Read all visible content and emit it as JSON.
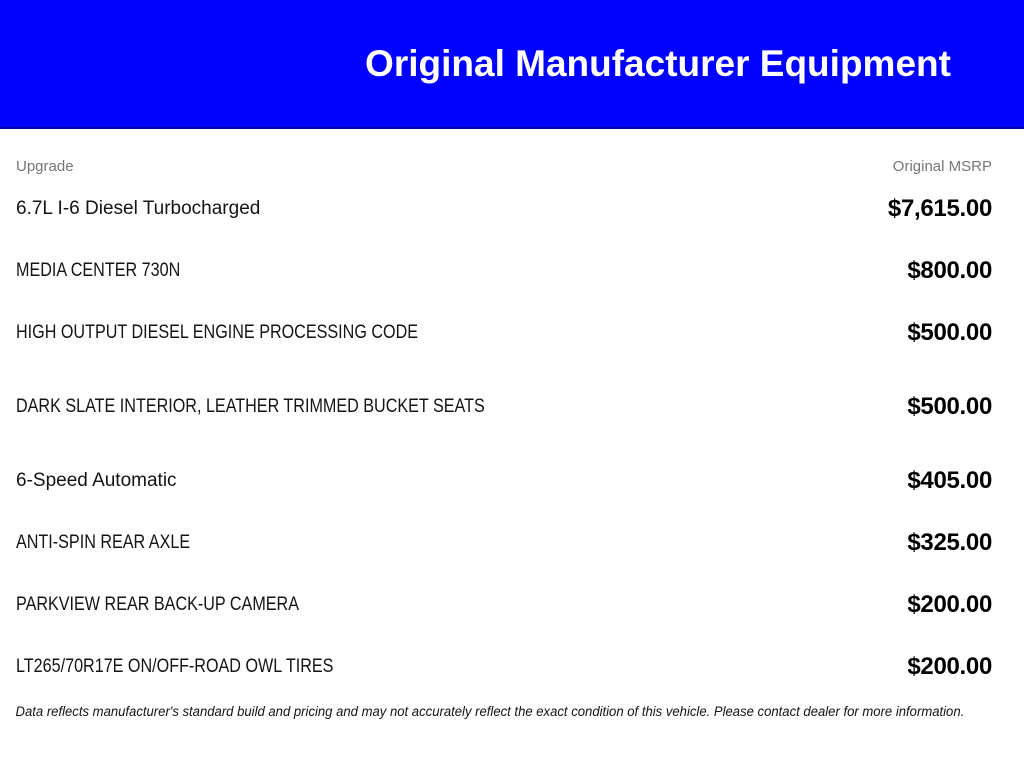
{
  "banner": {
    "title": "Original Manufacturer Equipment"
  },
  "table": {
    "columns": {
      "upgrade": "Upgrade",
      "msrp": "Original MSRP"
    },
    "rows": [
      {
        "label": "6.7L I-6 Diesel Turbocharged",
        "price": "$7,615.00"
      },
      {
        "label": "MEDIA CENTER 730N",
        "price": "$800.00"
      },
      {
        "label": "HIGH OUTPUT DIESEL ENGINE PROCESSING CODE",
        "price": "$500.00"
      },
      {
        "label": "DARK SLATE INTERIOR, LEATHER TRIMMED BUCKET SEATS",
        "price": "$500.00"
      },
      {
        "label": "6-Speed Automatic",
        "price": "$405.00"
      },
      {
        "label": "ANTI-SPIN REAR AXLE",
        "price": "$325.00"
      },
      {
        "label": "PARKVIEW REAR BACK-UP CAMERA",
        "price": "$200.00"
      },
      {
        "label": "LT265/70R17E ON/OFF-ROAD OWL TIRES",
        "price": "$200.00"
      }
    ]
  },
  "footer": {
    "disclaimer": "Data reflects manufacturer's standard build and pricing and may not accurately reflect the exact condition of this vehicle. Please contact dealer for more information."
  },
  "colors": {
    "banner_blue": "#0101fe",
    "banner_border": "#0000a6",
    "muted_gray": "#757575",
    "text_black": "#141414"
  }
}
